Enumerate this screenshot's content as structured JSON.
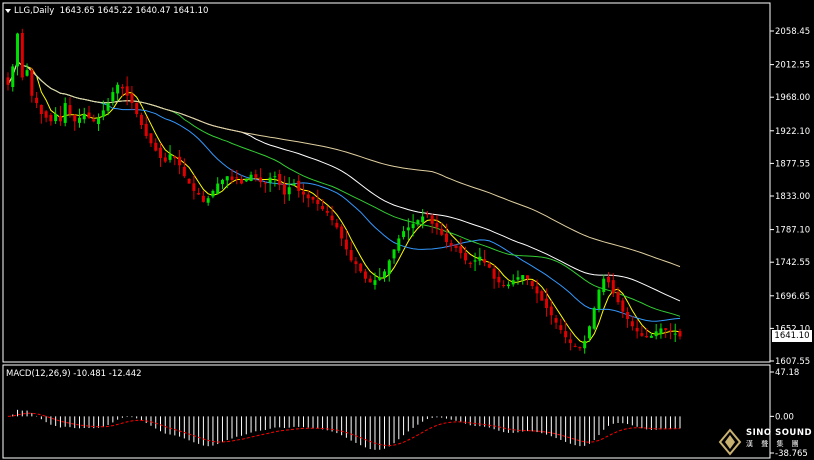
{
  "header": {
    "symbol": "LLG,Daily",
    "ohlc": "1643.65 1645.22 1640.47 1641.10",
    "last_price_label": "1641.10"
  },
  "macd": {
    "title": "MACD(12,26,9) -10.481 -12.442",
    "axis_labels": [
      "47.18",
      "0.00",
      "-38.765"
    ]
  },
  "logo": {
    "name": "SINO SOUND",
    "sub": "漢 聲 集 團"
  },
  "colors": {
    "background": "#000000",
    "bull_candle": "#00e000",
    "bear_candle": "#e00000",
    "ma_fast": "#ffff00",
    "ma_mid": "#3399ff",
    "ma_green": "#33cc33",
    "ma_white": "#ffffff",
    "ma_tan": "#e0d0a0",
    "macd_bars": "#ffffff",
    "macd_signal": "#ff0000"
  },
  "chart_data": {
    "type": "candlestick",
    "ytick_labels": [
      "2058.45",
      "2012.55",
      "1968.00",
      "1922.10",
      "1877.55",
      "1833.00",
      "1787.10",
      "1742.55",
      "1696.65",
      "1652.10",
      "1607.55"
    ],
    "ylim": [
      1598,
      2078
    ],
    "closes": [
      1985,
      2010,
      2055,
      1995,
      2005,
      1970,
      1960,
      1945,
      1940,
      1935,
      1945,
      1935,
      1960,
      1945,
      1935,
      1940,
      1945,
      1940,
      1935,
      1940,
      1950,
      1960,
      1975,
      1985,
      1980,
      1970,
      1960,
      1945,
      1930,
      1915,
      1905,
      1895,
      1885,
      1880,
      1890,
      1885,
      1875,
      1860,
      1850,
      1840,
      1835,
      1825,
      1830,
      1840,
      1850,
      1855,
      1860,
      1855,
      1858,
      1850,
      1856,
      1862,
      1858,
      1852,
      1850,
      1858,
      1860,
      1848,
      1835,
      1845,
      1850,
      1840,
      1835,
      1830,
      1828,
      1822,
      1815,
      1810,
      1800,
      1790,
      1775,
      1760,
      1745,
      1740,
      1730,
      1720,
      1715,
      1718,
      1722,
      1730,
      1745,
      1760,
      1775,
      1785,
      1790,
      1795,
      1800,
      1805,
      1808,
      1795,
      1790,
      1780,
      1770,
      1765,
      1762,
      1755,
      1745,
      1740,
      1745,
      1750,
      1742,
      1735,
      1720,
      1715,
      1710,
      1712,
      1718,
      1722,
      1725,
      1720,
      1710,
      1700,
      1690,
      1680,
      1670,
      1660,
      1650,
      1640,
      1632,
      1628,
      1625,
      1635,
      1655,
      1680,
      1705,
      1720,
      1715,
      1700,
      1688,
      1675,
      1665,
      1655,
      1648,
      1642,
      1640,
      1642,
      1648,
      1652,
      1650,
      1648,
      1645,
      1641.1
    ],
    "ma_periods_note": "",
    "macd_hist_range": [
      -38.765,
      47.18
    ]
  }
}
